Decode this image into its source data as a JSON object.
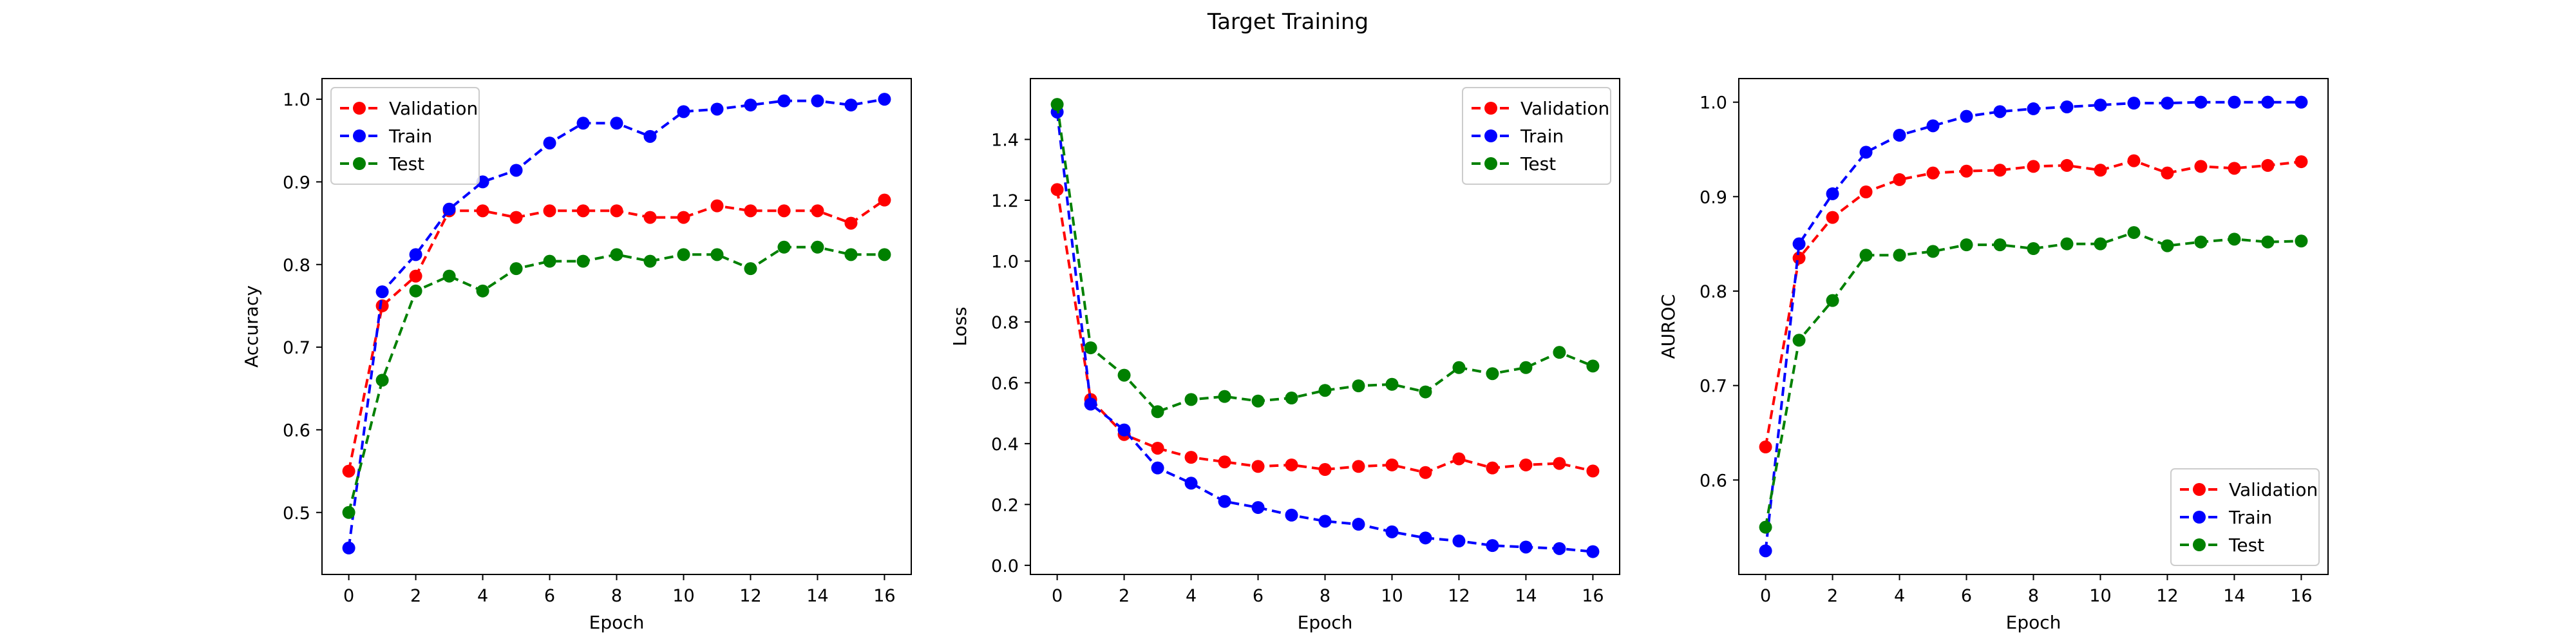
{
  "title": "Target Training",
  "colors": {
    "Validation": "#ff0000",
    "Train": "#0000ff",
    "Test": "#008000"
  },
  "chart_data": [
    {
      "type": "line",
      "xlabel": "Epoch",
      "ylabel": "Accuracy",
      "xlim": [
        -0.8,
        16.8
      ],
      "ylim": [
        0.425,
        1.025
      ],
      "xticks": [
        0,
        2,
        4,
        6,
        8,
        10,
        12,
        14,
        16
      ],
      "yticks": [
        0.5,
        0.6,
        0.7,
        0.8,
        0.9,
        1.0
      ],
      "ytick_labels": [
        "0.5",
        "0.6",
        "0.7",
        "0.8",
        "0.9",
        "1.0"
      ],
      "legend": "upper-left",
      "x": [
        0,
        1,
        2,
        3,
        4,
        5,
        6,
        7,
        8,
        9,
        10,
        11,
        12,
        13,
        14,
        15,
        16
      ],
      "series": [
        {
          "name": "Validation",
          "values": [
            0.55,
            0.75,
            0.786,
            0.865,
            0.865,
            0.857,
            0.865,
            0.865,
            0.865,
            0.857,
            0.857,
            0.871,
            0.865,
            0.865,
            0.865,
            0.85,
            0.878
          ]
        },
        {
          "name": "Train",
          "values": [
            0.457,
            0.767,
            0.812,
            0.867,
            0.9,
            0.914,
            0.947,
            0.971,
            0.971,
            0.955,
            0.985,
            0.988,
            0.993,
            0.998,
            0.998,
            0.993,
            1.0
          ]
        },
        {
          "name": "Test",
          "values": [
            0.5,
            0.66,
            0.768,
            0.786,
            0.768,
            0.795,
            0.804,
            0.804,
            0.812,
            0.804,
            0.812,
            0.812,
            0.795,
            0.821,
            0.821,
            0.812,
            0.812
          ]
        }
      ]
    },
    {
      "type": "line",
      "xlabel": "Epoch",
      "ylabel": "Loss",
      "xlim": [
        -0.8,
        16.8
      ],
      "ylim": [
        -0.03,
        1.6
      ],
      "xticks": [
        0,
        2,
        4,
        6,
        8,
        10,
        12,
        14,
        16
      ],
      "yticks": [
        0.0,
        0.2,
        0.4,
        0.6,
        0.8,
        1.0,
        1.2,
        1.4
      ],
      "ytick_labels": [
        "0.0",
        "0.2",
        "0.4",
        "0.6",
        "0.8",
        "1.0",
        "1.2",
        "1.4"
      ],
      "legend": "upper-right",
      "x": [
        0,
        1,
        2,
        3,
        4,
        5,
        6,
        7,
        8,
        9,
        10,
        11,
        12,
        13,
        14,
        15,
        16
      ],
      "series": [
        {
          "name": "Validation",
          "values": [
            1.235,
            0.545,
            0.43,
            0.385,
            0.355,
            0.34,
            0.325,
            0.33,
            0.315,
            0.325,
            0.33,
            0.305,
            0.35,
            0.32,
            0.33,
            0.335,
            0.31
          ]
        },
        {
          "name": "Train",
          "values": [
            1.49,
            0.53,
            0.445,
            0.32,
            0.27,
            0.21,
            0.19,
            0.165,
            0.145,
            0.135,
            0.11,
            0.09,
            0.08,
            0.065,
            0.06,
            0.055,
            0.045
          ]
        },
        {
          "name": "Test",
          "values": [
            1.515,
            0.715,
            0.625,
            0.505,
            0.545,
            0.555,
            0.54,
            0.55,
            0.575,
            0.59,
            0.595,
            0.57,
            0.65,
            0.63,
            0.65,
            0.7,
            0.655
          ]
        }
      ]
    },
    {
      "type": "line",
      "xlabel": "Epoch",
      "ylabel": "AUROC",
      "xlim": [
        -0.8,
        16.8
      ],
      "ylim": [
        0.5,
        1.025
      ],
      "xticks": [
        0,
        2,
        4,
        6,
        8,
        10,
        12,
        14,
        16
      ],
      "yticks": [
        0.6,
        0.7,
        0.8,
        0.9,
        1.0
      ],
      "ytick_labels": [
        "0.6",
        "0.7",
        "0.8",
        "0.9",
        "1.0"
      ],
      "legend": "lower-right",
      "x": [
        0,
        1,
        2,
        3,
        4,
        5,
        6,
        7,
        8,
        9,
        10,
        11,
        12,
        13,
        14,
        15,
        16
      ],
      "series": [
        {
          "name": "Validation",
          "values": [
            0.635,
            0.835,
            0.878,
            0.905,
            0.918,
            0.925,
            0.927,
            0.928,
            0.932,
            0.933,
            0.928,
            0.938,
            0.925,
            0.932,
            0.93,
            0.933,
            0.937
          ]
        },
        {
          "name": "Train",
          "values": [
            0.525,
            0.85,
            0.903,
            0.947,
            0.965,
            0.975,
            0.985,
            0.99,
            0.993,
            0.995,
            0.997,
            0.999,
            0.999,
            1.0,
            1.0,
            1.0,
            1.0
          ]
        },
        {
          "name": "Test",
          "values": [
            0.55,
            0.748,
            0.79,
            0.838,
            0.838,
            0.842,
            0.849,
            0.849,
            0.845,
            0.85,
            0.85,
            0.862,
            0.848,
            0.852,
            0.855,
            0.852,
            0.853
          ]
        }
      ]
    }
  ]
}
